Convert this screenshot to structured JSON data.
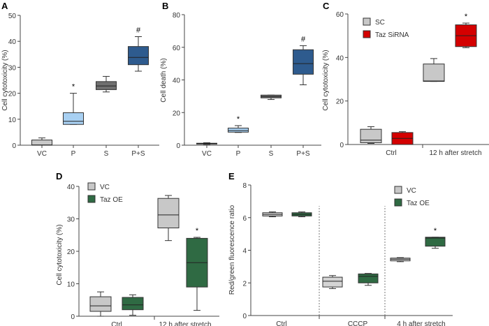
{
  "chart_data": [
    {
      "panel": "A",
      "type": "box",
      "ylabel": "Cell cytotoxicity (%)",
      "ylim": [
        0,
        50
      ],
      "yticks": [
        0,
        10,
        20,
        30,
        40,
        50
      ],
      "categories": [
        "VC",
        "P",
        "S",
        "P+S"
      ],
      "group_labels": [],
      "legend": [],
      "boxes": [
        {
          "category": "VC",
          "color": "#c8c8c8",
          "min": 0,
          "q1": 0,
          "median": 0.1,
          "q3": 2,
          "max": 2.8,
          "mark": ""
        },
        {
          "category": "P",
          "color": "#a8d0f2",
          "min": 8,
          "q1": 8,
          "median": 9.2,
          "q3": 12.5,
          "max": 20,
          "mark": "*"
        },
        {
          "category": "S",
          "color": "#707070",
          "min": 20.5,
          "q1": 21.4,
          "median": 22.8,
          "q3": 24.5,
          "max": 26.5,
          "mark": ""
        },
        {
          "category": "P+S",
          "color": "#2e5b8e",
          "min": 28.5,
          "q1": 31,
          "median": 33.8,
          "q3": 38,
          "max": 41.8,
          "mark": "#"
        }
      ]
    },
    {
      "panel": "B",
      "type": "box",
      "ylabel": "Cell death (%)",
      "ylim": [
        0,
        80
      ],
      "yticks": [
        0,
        20,
        40,
        60,
        80
      ],
      "categories": [
        "VC",
        "P",
        "S",
        "P+S"
      ],
      "group_labels": [],
      "legend": [],
      "boxes": [
        {
          "category": "VC",
          "color": "#c8c8c8",
          "min": 0.5,
          "q1": 0.7,
          "median": 1,
          "q3": 1.2,
          "max": 1.5,
          "mark": ""
        },
        {
          "category": "P",
          "color": "#a8d0f2",
          "min": 7.8,
          "q1": 8,
          "median": 9,
          "q3": 10.5,
          "max": 12,
          "mark": "*"
        },
        {
          "category": "S",
          "color": "#707070",
          "min": 28,
          "q1": 29,
          "median": 29.8,
          "q3": 30.7,
          "max": 30.7,
          "mark": ""
        },
        {
          "category": "P+S",
          "color": "#2e5b8e",
          "min": 37,
          "q1": 43.5,
          "median": 50,
          "q3": 58.5,
          "max": 61,
          "mark": "#"
        }
      ]
    },
    {
      "panel": "C",
      "type": "box",
      "ylabel": "Cell cytotoxicity (%)",
      "ylim": [
        0,
        60
      ],
      "yticks": [
        0,
        20,
        40,
        60
      ],
      "categories": [],
      "group_labels": [
        "Ctrl",
        "12 h after stretch"
      ],
      "legend": [
        {
          "label": "SC",
          "color": "#c8c8c8"
        },
        {
          "label": "Taz SiRNA",
          "color": "#d40000"
        }
      ],
      "boxes": [
        {
          "category": "Ctrl",
          "series": "SC",
          "color": "#c8c8c8",
          "min": 0.5,
          "q1": 0.8,
          "median": 2,
          "q3": 7,
          "max": 8.2,
          "mark": ""
        },
        {
          "category": "Ctrl",
          "series": "Taz SiRNA",
          "color": "#d40000",
          "min": 0,
          "q1": 0,
          "median": 2.8,
          "q3": 5.5,
          "max": 5.9,
          "mark": ""
        },
        {
          "category": "12 h after stretch",
          "series": "SC",
          "color": "#c8c8c8",
          "min": 29,
          "q1": 29,
          "median": 29.2,
          "q3": 37,
          "max": 39.5,
          "mark": ""
        },
        {
          "category": "12 h after stretch",
          "series": "Taz SiRNA",
          "color": "#d40000",
          "min": 44.5,
          "q1": 45,
          "median": 50,
          "q3": 55,
          "max": 55.8,
          "mark": "*"
        }
      ]
    },
    {
      "panel": "D",
      "type": "box",
      "ylabel": "Cell cytotoxicity (%)",
      "ylim": [
        0,
        40
      ],
      "yticks": [
        0,
        10,
        20,
        30,
        40
      ],
      "categories": [],
      "group_labels": [
        "Ctrl",
        "12 h after stretch"
      ],
      "legend": [
        {
          "label": "VC",
          "color": "#c8c8c8"
        },
        {
          "label": "Taz OE",
          "color": "#2f6a43"
        }
      ],
      "boxes": [
        {
          "category": "Ctrl",
          "series": "VC",
          "color": "#c8c8c8",
          "min": 0,
          "q1": 1.5,
          "median": 3.2,
          "q3": 6,
          "max": 7.5,
          "mark": ""
        },
        {
          "category": "Ctrl",
          "series": "Taz OE",
          "color": "#2f6a43",
          "min": 0.3,
          "q1": 2,
          "median": 3.5,
          "q3": 5.8,
          "max": 6.6,
          "mark": ""
        },
        {
          "category": "12 h after stretch",
          "series": "VC",
          "color": "#c8c8c8",
          "min": 23.3,
          "q1": 27.2,
          "median": 31.2,
          "q3": 36.3,
          "max": 37.2,
          "mark": ""
        },
        {
          "category": "12 h after stretch",
          "series": "Taz OE",
          "color": "#2f6a43",
          "min": 1.8,
          "q1": 9,
          "median": 16.5,
          "q3": 24,
          "max": 24.3,
          "mark": "*"
        }
      ]
    },
    {
      "panel": "E",
      "type": "box",
      "ylabel": "Red/green fluorescence ratio",
      "ylim": [
        0,
        8
      ],
      "yticks": [
        0,
        2,
        4,
        6,
        8
      ],
      "categories": [],
      "group_labels": [
        "Ctrl",
        "CCCP",
        "4 h after stretch"
      ],
      "legend": [
        {
          "label": "VC",
          "color": "#c8c8c8"
        },
        {
          "label": "Taz OE",
          "color": "#2f6a43"
        }
      ],
      "boxes": [
        {
          "category": "Ctrl",
          "series": "VC",
          "color": "#d4d4d4",
          "min": 6.05,
          "q1": 6.1,
          "median": 6.2,
          "q3": 6.3,
          "max": 6.35,
          "mark": ""
        },
        {
          "category": "Ctrl",
          "series": "Taz OE",
          "color": "#2f6a43",
          "min": 6.05,
          "q1": 6.1,
          "median": 6.2,
          "q3": 6.3,
          "max": 6.35,
          "mark": ""
        },
        {
          "category": "CCCP",
          "series": "VC",
          "color": "#d4d4d4",
          "min": 1.65,
          "q1": 1.75,
          "median": 2.1,
          "q3": 2.35,
          "max": 2.45,
          "mark": ""
        },
        {
          "category": "CCCP",
          "series": "Taz OE",
          "color": "#2f6a43",
          "min": 1.85,
          "q1": 2.0,
          "median": 2.4,
          "q3": 2.55,
          "max": 2.58,
          "mark": ""
        },
        {
          "category": "4 h after stretch",
          "series": "VC",
          "color": "#d4d4d4",
          "min": 3.3,
          "q1": 3.35,
          "median": 3.45,
          "q3": 3.52,
          "max": 3.55,
          "mark": ""
        },
        {
          "category": "4 h after stretch",
          "series": "Taz OE",
          "color": "#2f6a43",
          "min": 4.12,
          "q1": 4.25,
          "median": 4.75,
          "q3": 4.8,
          "max": 4.8,
          "mark": "*"
        }
      ]
    }
  ]
}
